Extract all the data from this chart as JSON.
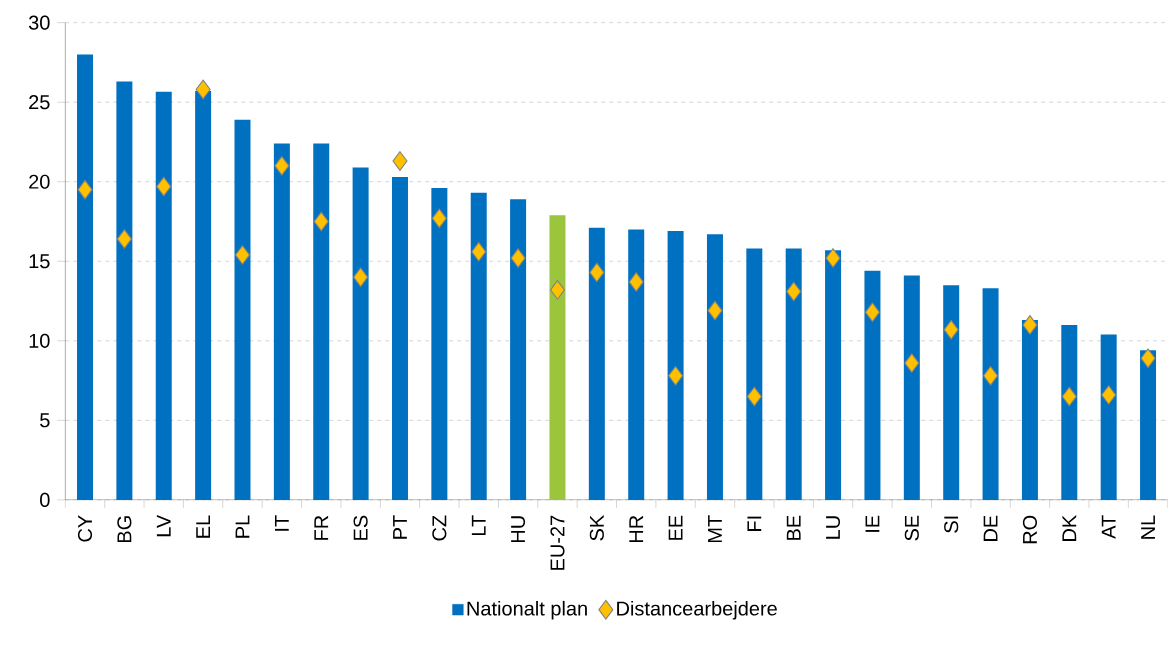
{
  "chart_data": {
    "type": "bar",
    "categories": [
      "CY",
      "BG",
      "LV",
      "EL",
      "PL",
      "IT",
      "FR",
      "ES",
      "PT",
      "CZ",
      "LT",
      "HU",
      "EU-27",
      "SK",
      "HR",
      "EE",
      "MT",
      "FI",
      "BE",
      "LU",
      "IE",
      "SE",
      "SI",
      "DE",
      "RO",
      "DK",
      "AT",
      "NL"
    ],
    "series": [
      {
        "name": "Nationalt plan",
        "color": "#0070c0",
        "colors": [
          "#0070c0",
          "#0070c0",
          "#0070c0",
          "#0070c0",
          "#0070c0",
          "#0070c0",
          "#0070c0",
          "#0070c0",
          "#0070c0",
          "#0070c0",
          "#0070c0",
          "#0070c0",
          "#9bc53d",
          "#0070c0",
          "#0070c0",
          "#0070c0",
          "#0070c0",
          "#0070c0",
          "#0070c0",
          "#0070c0",
          "#0070c0",
          "#0070c0",
          "#0070c0",
          "#0070c0",
          "#0070c0",
          "#0070c0",
          "#0070c0",
          "#0070c0"
        ],
        "values": [
          28.0,
          26.3,
          25.65,
          25.7,
          23.9,
          22.4,
          22.4,
          20.9,
          20.3,
          19.6,
          19.3,
          18.9,
          17.9,
          17.1,
          17.0,
          16.9,
          16.7,
          15.8,
          15.8,
          15.7,
          14.4,
          14.1,
          13.5,
          13.3,
          11.3,
          11.0,
          10.4,
          9.4
        ]
      },
      {
        "name": "Distancearbejdere",
        "type": "scatter",
        "color": "#ffc000",
        "marker": "diamond",
        "values": [
          19.5,
          16.4,
          19.7,
          25.8,
          15.4,
          21.0,
          17.5,
          14.0,
          21.3,
          17.7,
          15.6,
          15.2,
          13.2,
          14.3,
          13.7,
          7.8,
          11.9,
          6.5,
          13.1,
          15.2,
          11.8,
          8.6,
          10.7,
          7.8,
          11.0,
          6.5,
          6.6,
          8.9
        ]
      }
    ],
    "ylim": [
      0,
      30
    ],
    "yticks": [
      0,
      5,
      10,
      15,
      20,
      25,
      30
    ],
    "grid": "y",
    "legend": "bottom"
  }
}
